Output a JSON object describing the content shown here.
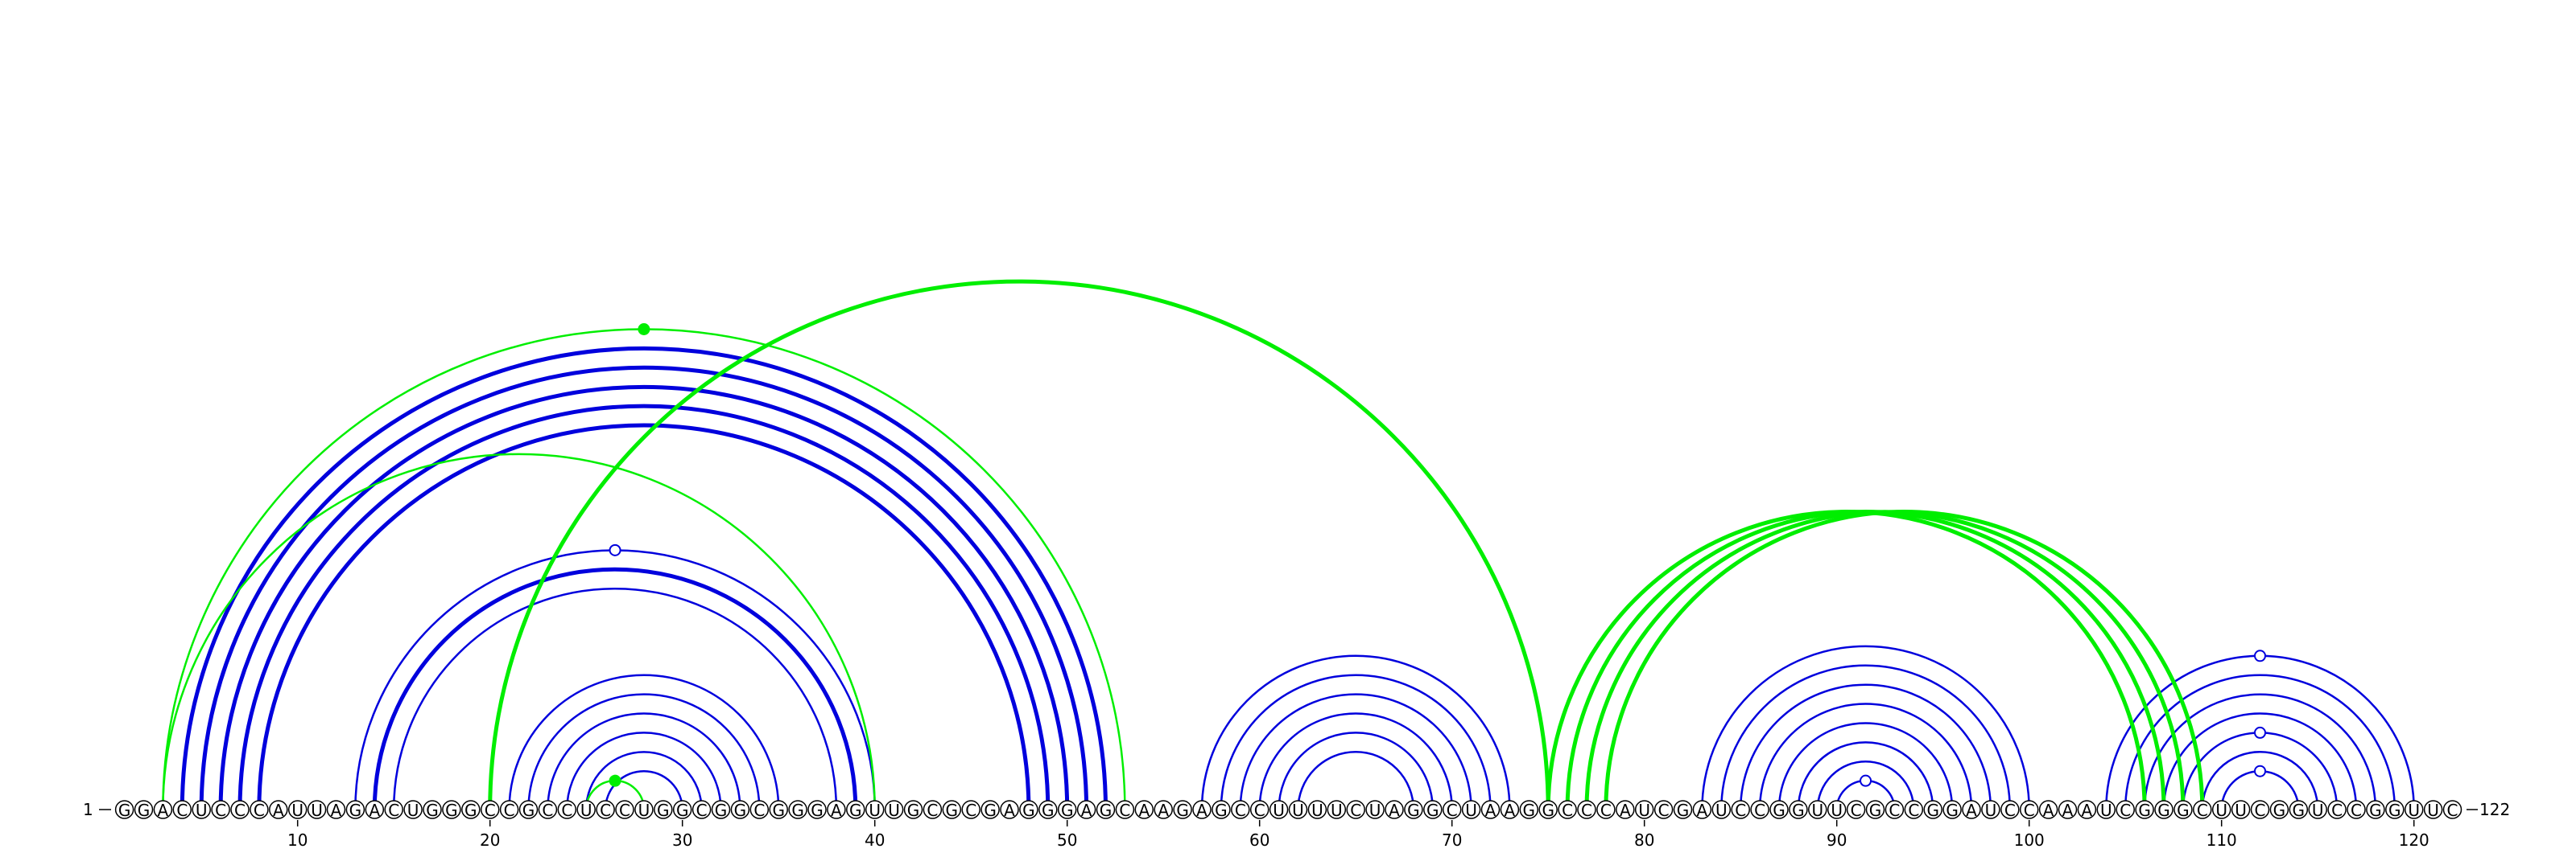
{
  "colors": {
    "primary_arc": "#0000dd",
    "secondary_arc": "#00ee00"
  },
  "chart_data": {
    "type": "arc-diagram",
    "sequence": "GGACUCCCAUUAGACUGGGCCGCCUCCUGGCGGCGGGAGUUGCGCGAGGGAGCAAGAGCCUUUUCUAGGCUAAGGCCCAUCGAUCCGGUUCGCCGGAUCCAAAUCGGGCUUCGGUCCGGUUC",
    "start_label": "1",
    "end_label": "122",
    "ticks": [
      10,
      20,
      30,
      40,
      50,
      60,
      70,
      80,
      90,
      100,
      110,
      120
    ],
    "primary_pairs": [
      [
        4,
        52,
        2
      ],
      [
        5,
        51,
        2
      ],
      [
        6,
        50,
        2
      ],
      [
        7,
        49,
        2
      ],
      [
        8,
        48,
        2
      ],
      [
        13,
        40,
        1
      ],
      [
        14,
        39,
        2
      ],
      [
        15,
        38,
        1
      ],
      [
        21,
        35,
        1
      ],
      [
        22,
        34,
        1
      ],
      [
        23,
        33,
        1
      ],
      [
        24,
        32,
        1
      ],
      [
        25,
        31,
        1
      ],
      [
        26,
        30,
        1
      ],
      [
        57,
        73,
        1
      ],
      [
        58,
        72,
        1
      ],
      [
        59,
        71,
        1
      ],
      [
        60,
        70,
        1
      ],
      [
        61,
        69,
        1
      ],
      [
        62,
        68,
        1
      ],
      [
        83,
        100,
        1
      ],
      [
        84,
        99,
        1
      ],
      [
        85,
        98,
        1
      ],
      [
        86,
        97,
        1
      ],
      [
        87,
        96,
        1
      ],
      [
        88,
        95,
        1
      ],
      [
        89,
        94,
        1
      ],
      [
        90,
        93,
        1
      ],
      [
        104,
        120,
        1
      ],
      [
        105,
        119,
        1
      ],
      [
        106,
        118,
        1
      ],
      [
        107,
        117,
        1
      ],
      [
        108,
        116,
        1
      ],
      [
        109,
        115,
        1
      ],
      [
        110,
        114,
        1
      ]
    ],
    "secondary_pairs": [
      [
        3,
        53,
        1
      ],
      [
        3,
        40,
        1
      ],
      [
        20,
        75,
        2
      ],
      [
        25,
        28,
        1
      ],
      [
        75,
        106,
        2
      ],
      [
        76,
        107,
        2
      ],
      [
        77,
        108,
        2
      ],
      [
        78,
        109,
        2
      ]
    ],
    "open_markers": [
      [
        13,
        40
      ],
      [
        90,
        93
      ],
      [
        104,
        120
      ],
      [
        108,
        116
      ],
      [
        110,
        114
      ]
    ],
    "filled_markers": [
      [
        3,
        53
      ],
      [
        25,
        28
      ]
    ]
  }
}
